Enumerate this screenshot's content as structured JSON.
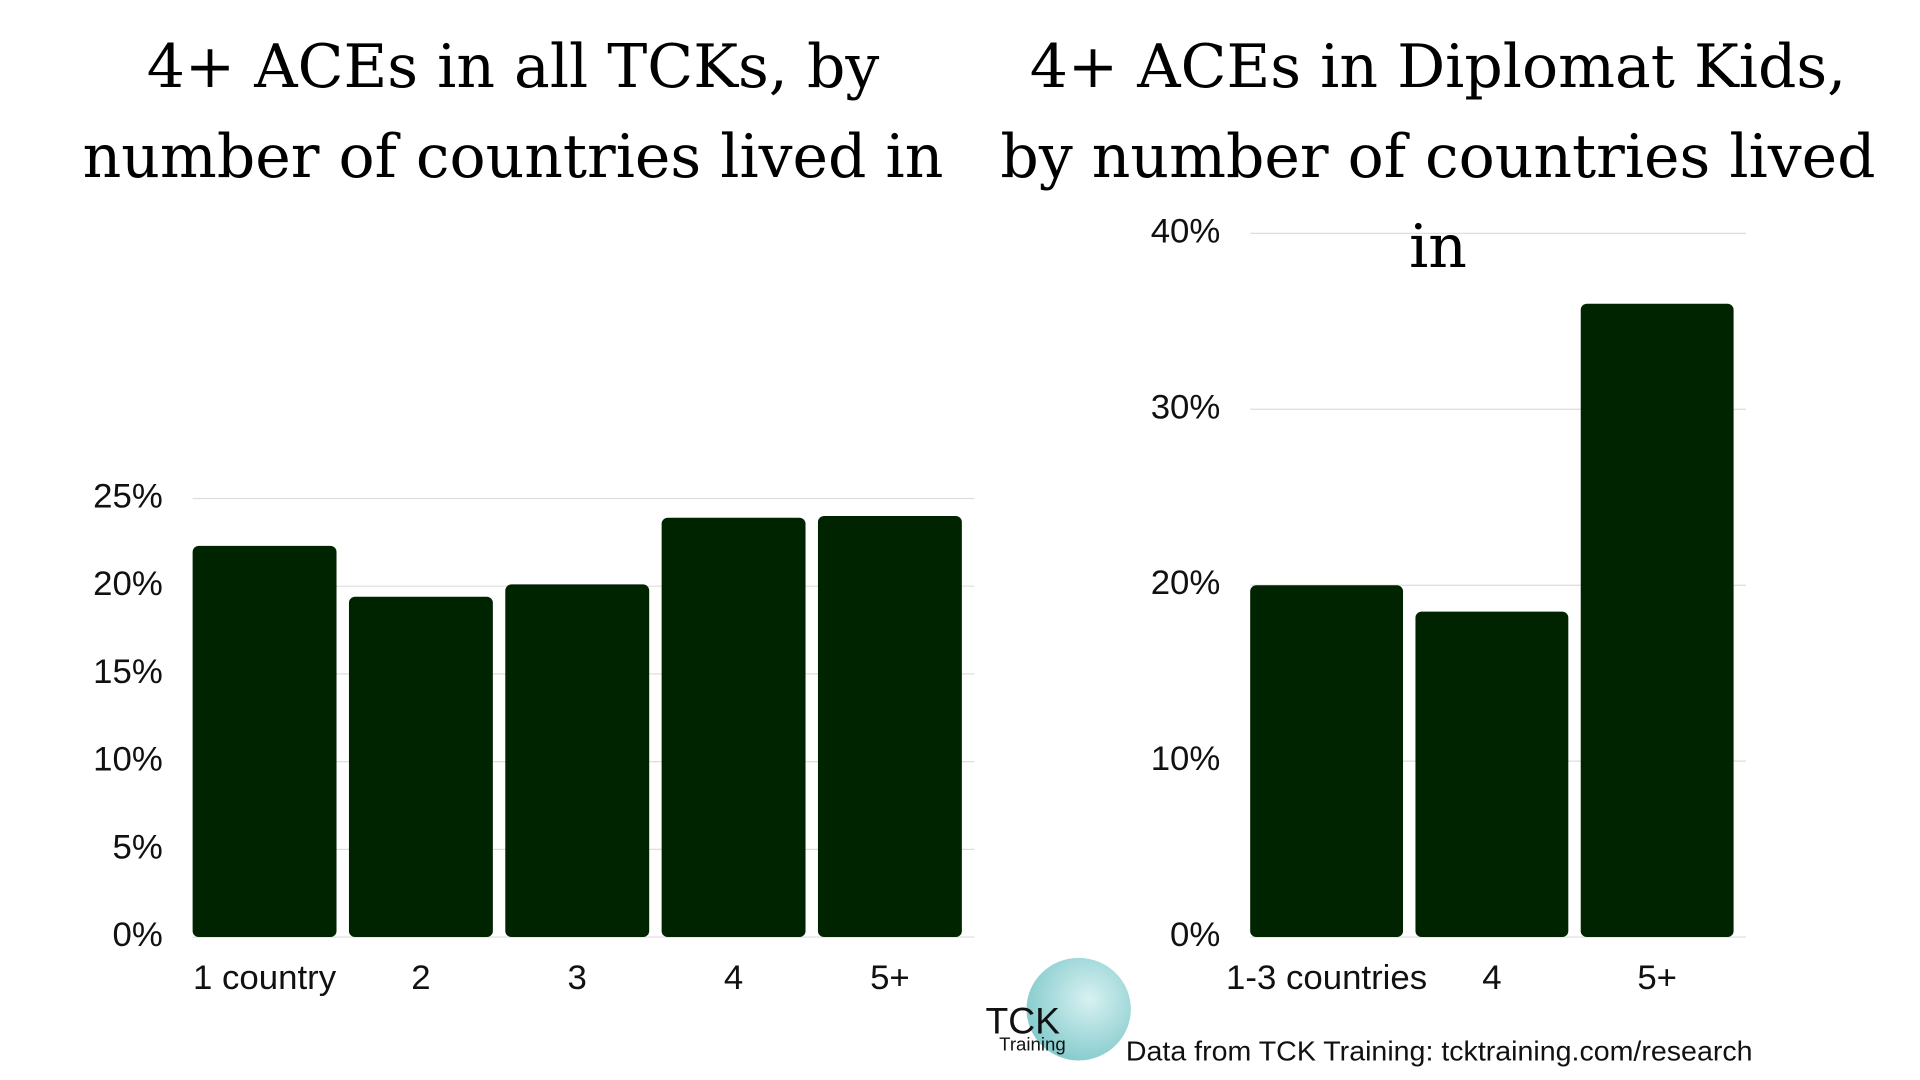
{
  "chart_data": [
    {
      "type": "bar",
      "title": "4+ ACEs in all TCKs, by number of countries lived in",
      "categories": [
        "1 country",
        "2",
        "3",
        "4",
        "5+"
      ],
      "values": [
        22.3,
        19.4,
        20.1,
        23.9,
        24.0
      ],
      "color": "#012400",
      "ylim": [
        0,
        25
      ],
      "yticks": [
        {
          "value": 0,
          "label": "0%"
        },
        {
          "value": 5,
          "label": "5%"
        },
        {
          "value": 10,
          "label": "10%"
        },
        {
          "value": 15,
          "label": "15%"
        },
        {
          "value": 20,
          "label": "20%"
        },
        {
          "value": 25,
          "label": "25%"
        }
      ],
      "grid": true
    },
    {
      "type": "bar",
      "title": "4+ ACEs in Diplomat Kids, by number of countries lived in",
      "categories": [
        "1-3 countries",
        "4",
        "5+"
      ],
      "values": [
        20.0,
        18.5,
        36.0
      ],
      "color": "#012400",
      "ylim": [
        0,
        40
      ],
      "yticks": [
        {
          "value": 0,
          "label": "0%"
        },
        {
          "value": 10,
          "label": "10%"
        },
        {
          "value": 20,
          "label": "20%"
        },
        {
          "value": 30,
          "label": "30%"
        },
        {
          "value": 40,
          "label": "40%"
        }
      ],
      "grid": true
    }
  ],
  "footer": {
    "source": "Data from TCK Training: tcktraining.com/research",
    "logo_mark": "TCK",
    "logo_word": "Training"
  }
}
